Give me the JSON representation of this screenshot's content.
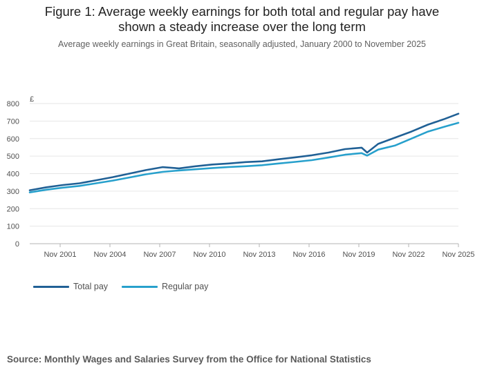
{
  "title_line1": "Figure 1: Average weekly earnings for both total and regular pay have",
  "title_line2": "shown a steady increase over the long term",
  "subtitle": "Average weekly earnings in Great Britain, seasonally adjusted, January 2000 to November 2025",
  "source": "Source: Monthly Wages and Salaries Survey from the Office for National Statistics",
  "colors": {
    "total": "#206095",
    "regular": "#27a0cc"
  },
  "chart_data": {
    "type": "line",
    "ylabel": "£",
    "ylim": [
      0,
      800
    ],
    "yticks": [
      0,
      100,
      200,
      300,
      400,
      500,
      600,
      700,
      800
    ],
    "xlim": [
      "Jan 2000",
      "Nov 2025"
    ],
    "xticks": [
      "Nov 2001",
      "Nov 2004",
      "Nov 2007",
      "Nov 2010",
      "Nov 2013",
      "Nov 2016",
      "Nov 2019",
      "Nov 2022",
      "Nov 2025"
    ],
    "legend_position": "bottom-left",
    "grid": true,
    "series": [
      {
        "name": "Total pay",
        "points": [
          [
            "Jan 2000",
            305
          ],
          [
            "Jan 2001",
            322
          ],
          [
            "Jan 2002",
            335
          ],
          [
            "Jan 2003",
            345
          ],
          [
            "Jan 2004",
            362
          ],
          [
            "Jan 2005",
            380
          ],
          [
            "Jan 2006",
            400
          ],
          [
            "Jan 2007",
            420
          ],
          [
            "Jan 2008",
            437
          ],
          [
            "Jan 2009",
            430
          ],
          [
            "Jan 2010",
            442
          ],
          [
            "Jan 2011",
            452
          ],
          [
            "Jan 2012",
            458
          ],
          [
            "Jan 2013",
            466
          ],
          [
            "Jan 2014",
            470
          ],
          [
            "Jan 2015",
            482
          ],
          [
            "Jan 2016",
            493
          ],
          [
            "Jan 2017",
            505
          ],
          [
            "Jan 2018",
            520
          ],
          [
            "Jan 2019",
            540
          ],
          [
            "Jan 2020",
            548
          ],
          [
            "May 2020",
            520
          ],
          [
            "Jan 2021",
            570
          ],
          [
            "Jan 2022",
            605
          ],
          [
            "Jan 2023",
            640
          ],
          [
            "Jan 2024",
            680
          ],
          [
            "Jan 2025",
            712
          ],
          [
            "Nov 2025",
            742
          ]
        ]
      },
      {
        "name": "Regular pay",
        "points": [
          [
            "Jan 2000",
            293
          ],
          [
            "Jan 2001",
            308
          ],
          [
            "Jan 2002",
            320
          ],
          [
            "Jan 2003",
            330
          ],
          [
            "Jan 2004",
            345
          ],
          [
            "Jan 2005",
            360
          ],
          [
            "Jan 2006",
            378
          ],
          [
            "Jan 2007",
            396
          ],
          [
            "Jan 2008",
            410
          ],
          [
            "Jan 2009",
            418
          ],
          [
            "Jan 2010",
            425
          ],
          [
            "Jan 2011",
            432
          ],
          [
            "Jan 2012",
            438
          ],
          [
            "Jan 2013",
            442
          ],
          [
            "Jan 2014",
            448
          ],
          [
            "Jan 2015",
            458
          ],
          [
            "Jan 2016",
            467
          ],
          [
            "Jan 2017",
            477
          ],
          [
            "Jan 2018",
            492
          ],
          [
            "Jan 2019",
            508
          ],
          [
            "Jan 2020",
            517
          ],
          [
            "May 2020",
            503
          ],
          [
            "Jan 2021",
            537
          ],
          [
            "Jan 2022",
            560
          ],
          [
            "Jan 2023",
            600
          ],
          [
            "Jan 2024",
            640
          ],
          [
            "Jan 2025",
            668
          ],
          [
            "Nov 2025",
            690
          ]
        ]
      }
    ]
  }
}
